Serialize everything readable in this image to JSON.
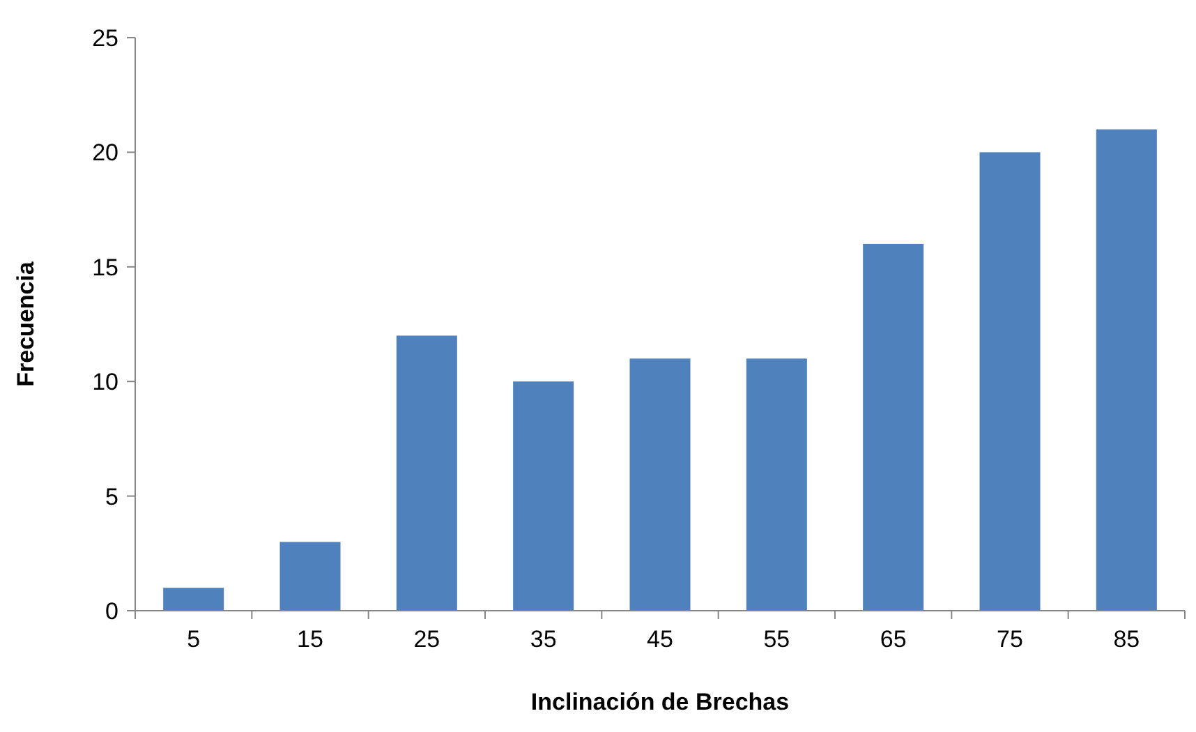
{
  "chart_data": {
    "type": "bar",
    "xlabel": "Inclinación de Brechas",
    "ylabel": "Frecuencia",
    "categories": [
      "5",
      "15",
      "25",
      "35",
      "45",
      "55",
      "65",
      "75",
      "85"
    ],
    "values": [
      1,
      3,
      12,
      10,
      11,
      11,
      16,
      20,
      21
    ],
    "color": "#4f81bd",
    "ylim": [
      0,
      25
    ],
    "yticks": [
      0,
      5,
      10,
      15,
      20,
      25
    ],
    "grid": false
  }
}
